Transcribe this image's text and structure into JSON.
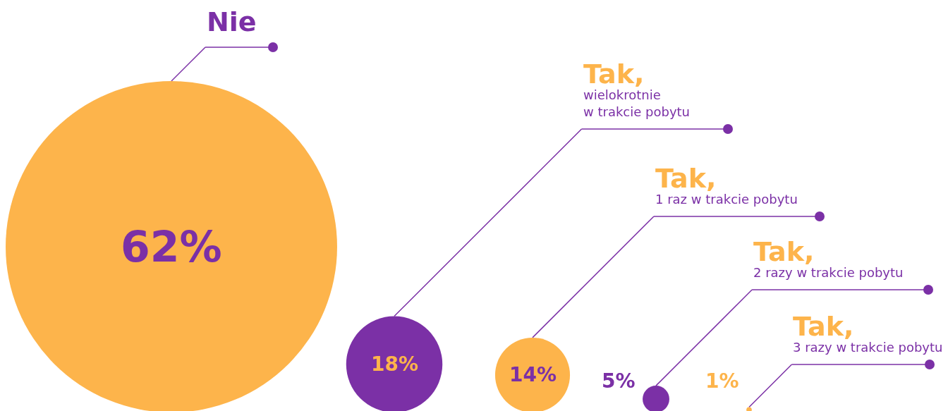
{
  "chart_data": {
    "type": "other",
    "categories": [
      "Nie",
      "Tak,\nwielokrotnie\nw trakcie pobytu",
      "Tak,\n1 raz w trakcie pobytu",
      "Tak,\n2 razy w trakcie pobytu",
      "Tak,\n3 razy w trakcie pobytu"
    ],
    "values": [
      62,
      18,
      14,
      5,
      1
    ],
    "colors": [
      "#fdb44b",
      "#7b30a6",
      "#fdb44b",
      "#7b30a6",
      "#fdb44b"
    ],
    "value_labels": [
      "62%",
      "18%",
      "14%",
      "5%",
      "1%"
    ]
  }
}
